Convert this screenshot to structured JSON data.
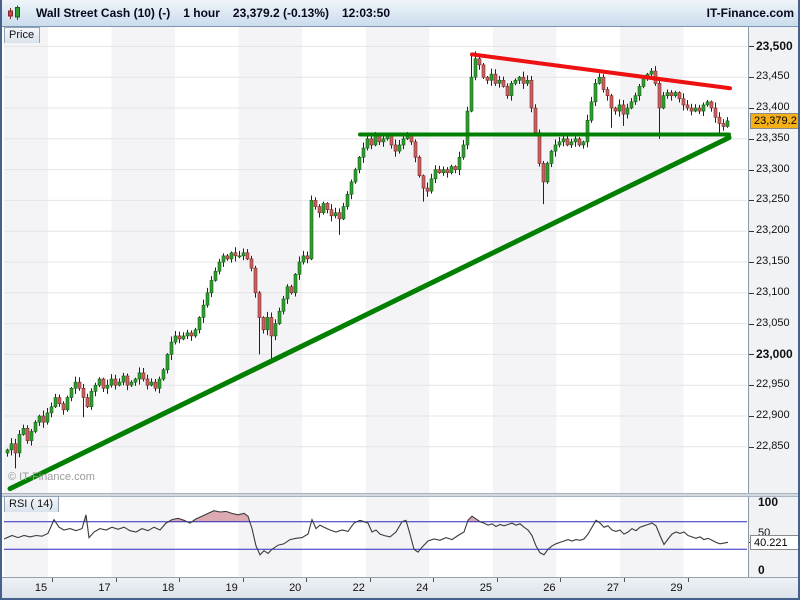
{
  "titlebar": {
    "instrument": "Wall Street Cash (10) (-)",
    "timeframe": "1 hour",
    "price_and_change": "23,379.2 (-0.13%)",
    "time": "12:03:50",
    "brand": "IT-Finance.com"
  },
  "tabs": {
    "price": "Price",
    "rsi": "RSI ( 14)"
  },
  "watermark": "© IT-Finance.com",
  "price_axis": {
    "badge": "23,379.2",
    "min": 22850,
    "max": 23500,
    "step": 50,
    "bold_values": [
      23500,
      23000
    ]
  },
  "rsi_axis": {
    "top_label": "100",
    "mid_label": "50",
    "bottom_label": "0",
    "badge": "40.221"
  },
  "time_axis": {
    "labels": [
      "15",
      "17",
      "18",
      "19",
      "20",
      "22",
      "24",
      "25",
      "26",
      "27",
      "29"
    ]
  },
  "colors": {
    "up": "#2f9e2f",
    "up_border": "#1d5c1d",
    "down": "#c96161",
    "down_border": "#7a2a2a",
    "wick": "#222222",
    "trend_green": "#007f00",
    "trend_red": "#ee1111",
    "rsi_line": "#3b3b3b",
    "rsi_level": "#2b2bc0",
    "rsi_fill": "#dcaab0",
    "grid": "#e4e4e7",
    "band": "#f4f4f7",
    "badge_bg": "#f5af17"
  },
  "chart_data": {
    "type": "candlestick",
    "title": "Wall Street Cash (10) 1 hour",
    "ylim": [
      22850,
      23500
    ],
    "x_start": 4,
    "x_step": 4,
    "first_open": 22840,
    "closes": [
      22845,
      22855,
      22840,
      22870,
      22880,
      22860,
      22875,
      22890,
      22900,
      22890,
      22905,
      22915,
      22930,
      22920,
      22910,
      22930,
      22945,
      22955,
      22945,
      22930,
      22915,
      22940,
      22950,
      22960,
      22945,
      22950,
      22960,
      22950,
      22955,
      22965,
      22950,
      22955,
      22960,
      22970,
      22960,
      22950,
      22955,
      22945,
      22960,
      22975,
      23000,
      23020,
      23030,
      23025,
      23030,
      23035,
      23030,
      23040,
      23060,
      23080,
      23100,
      23120,
      23135,
      23150,
      23160,
      23155,
      23165,
      23160,
      23160,
      23165,
      23155,
      23140,
      23100,
      23060,
      23040,
      23060,
      23030,
      23050,
      23070,
      23090,
      23110,
      23100,
      23130,
      23150,
      23160,
      23155,
      23250,
      23240,
      23230,
      23245,
      23235,
      23225,
      23230,
      23220,
      23240,
      23260,
      23280,
      23300,
      23320,
      23335,
      23350,
      23340,
      23355,
      23345,
      23350,
      23355,
      23340,
      23330,
      23340,
      23350,
      23355,
      23345,
      23320,
      23290,
      23270,
      23265,
      23285,
      23300,
      23295,
      23300,
      23295,
      23305,
      23300,
      23320,
      23340,
      23395,
      23450,
      23480,
      23470,
      23450,
      23445,
      23455,
      23440,
      23445,
      23435,
      23420,
      23440,
      23445,
      23450,
      23440,
      23445,
      23400,
      23360,
      23310,
      23280,
      23310,
      23330,
      23340,
      23345,
      23350,
      23340,
      23345,
      23350,
      23340,
      23345,
      23380,
      23410,
      23440,
      23450,
      23430,
      23420,
      23400,
      23395,
      23405,
      23390,
      23400,
      23410,
      23420,
      23435,
      23450,
      23455,
      23460,
      23440,
      23400,
      23420,
      23425,
      23420,
      23425,
      23415,
      23405,
      23400,
      23395,
      23400,
      23395,
      23405,
      23410,
      23400,
      23385,
      23375,
      23370,
      23379.2
    ],
    "wick_low_overrides": {
      "2": 22815,
      "19": 22898,
      "63": 23000,
      "66": 22992,
      "83": 23194,
      "104": 23248,
      "134": 23244,
      "151": 23368,
      "154": 23371,
      "163": 23350,
      "178": 23360
    },
    "wick_high_overrides": {
      "76": 23258,
      "116": 23486,
      "117": 23492,
      "161": 23465
    },
    "trendlines": [
      {
        "name": "support-trendline",
        "color_key": "trend_green",
        "width": 5,
        "x1": 8,
        "p1": 22782,
        "x2": 727,
        "p2": 23352
      },
      {
        "name": "horizontal-support",
        "color_key": "trend_green",
        "width": 4,
        "x1": 358,
        "p1": 23357,
        "x2": 727,
        "p2": 23357
      },
      {
        "name": "resistance-trendline",
        "color_key": "trend_red",
        "width": 4,
        "x1": 470,
        "p1": 23487,
        "x2": 728,
        "p2": 23432
      }
    ],
    "rsi": {
      "type": "line",
      "period_label": "RSI ( 14)",
      "levels": [
        70,
        30
      ],
      "current": 40.221,
      "points": [
        [
          0,
          45
        ],
        [
          8,
          50
        ],
        [
          14,
          47
        ],
        [
          20,
          50
        ],
        [
          26,
          48
        ],
        [
          32,
          50
        ],
        [
          38,
          49
        ],
        [
          44,
          53
        ],
        [
          50,
          73
        ],
        [
          55,
          62
        ],
        [
          60,
          58
        ],
        [
          66,
          60
        ],
        [
          72,
          57
        ],
        [
          78,
          60
        ],
        [
          82,
          80
        ],
        [
          85,
          47
        ],
        [
          90,
          55
        ],
        [
          96,
          60
        ],
        [
          102,
          58
        ],
        [
          108,
          62
        ],
        [
          114,
          59
        ],
        [
          120,
          62
        ],
        [
          126,
          57
        ],
        [
          132,
          55
        ],
        [
          138,
          60
        ],
        [
          144,
          57
        ],
        [
          150,
          62
        ],
        [
          156,
          58
        ],
        [
          162,
          68
        ],
        [
          168,
          73
        ],
        [
          174,
          75
        ],
        [
          180,
          72
        ],
        [
          186,
          68
        ],
        [
          192,
          74
        ],
        [
          198,
          78
        ],
        [
          204,
          82
        ],
        [
          210,
          86
        ],
        [
          216,
          84
        ],
        [
          222,
          85
        ],
        [
          228,
          82
        ],
        [
          234,
          80
        ],
        [
          240,
          82
        ],
        [
          244,
          78
        ],
        [
          248,
          60
        ],
        [
          252,
          35
        ],
        [
          256,
          22
        ],
        [
          260,
          28
        ],
        [
          264,
          24
        ],
        [
          268,
          30
        ],
        [
          274,
          36
        ],
        [
          280,
          38
        ],
        [
          286,
          44
        ],
        [
          292,
          46
        ],
        [
          298,
          47
        ],
        [
          304,
          52
        ],
        [
          308,
          73
        ],
        [
          312,
          60
        ],
        [
          316,
          65
        ],
        [
          320,
          62
        ],
        [
          326,
          58
        ],
        [
          332,
          55
        ],
        [
          338,
          58
        ],
        [
          344,
          56
        ],
        [
          350,
          68
        ],
        [
          356,
          72
        ],
        [
          360,
          70
        ],
        [
          364,
          68
        ],
        [
          368,
          55
        ],
        [
          372,
          58
        ],
        [
          376,
          52
        ],
        [
          380,
          50
        ],
        [
          386,
          48
        ],
        [
          392,
          55
        ],
        [
          398,
          70
        ],
        [
          402,
          72
        ],
        [
          406,
          52
        ],
        [
          410,
          30
        ],
        [
          414,
          26
        ],
        [
          418,
          33
        ],
        [
          424,
          42
        ],
        [
          430,
          45
        ],
        [
          436,
          43
        ],
        [
          442,
          47
        ],
        [
          448,
          44
        ],
        [
          454,
          50
        ],
        [
          460,
          55
        ],
        [
          464,
          72
        ],
        [
          468,
          78
        ],
        [
          472,
          74
        ],
        [
          476,
          70
        ],
        [
          480,
          68
        ],
        [
          484,
          65
        ],
        [
          488,
          67
        ],
        [
          492,
          63
        ],
        [
          496,
          66
        ],
        [
          500,
          64
        ],
        [
          504,
          66
        ],
        [
          508,
          68
        ],
        [
          512,
          65
        ],
        [
          516,
          67
        ],
        [
          520,
          62
        ],
        [
          524,
          58
        ],
        [
          528,
          50
        ],
        [
          532,
          35
        ],
        [
          536,
          25
        ],
        [
          540,
          22
        ],
        [
          544,
          30
        ],
        [
          548,
          35
        ],
        [
          552,
          38
        ],
        [
          556,
          40
        ],
        [
          560,
          42
        ],
        [
          564,
          44
        ],
        [
          568,
          42
        ],
        [
          572,
          44
        ],
        [
          576,
          43
        ],
        [
          580,
          45
        ],
        [
          584,
          52
        ],
        [
          588,
          62
        ],
        [
          592,
          72
        ],
        [
          596,
          68
        ],
        [
          600,
          62
        ],
        [
          604,
          64
        ],
        [
          608,
          58
        ],
        [
          612,
          56
        ],
        [
          616,
          58
        ],
        [
          620,
          52
        ],
        [
          624,
          55
        ],
        [
          628,
          60
        ],
        [
          632,
          57
        ],
        [
          636,
          62
        ],
        [
          640,
          64
        ],
        [
          644,
          66
        ],
        [
          648,
          68
        ],
        [
          652,
          64
        ],
        [
          656,
          50
        ],
        [
          660,
          37
        ],
        [
          664,
          45
        ],
        [
          668,
          52
        ],
        [
          672,
          55
        ],
        [
          676,
          53
        ],
        [
          680,
          55
        ],
        [
          684,
          50
        ],
        [
          688,
          48
        ],
        [
          692,
          46
        ],
        [
          696,
          48
        ],
        [
          700,
          44
        ],
        [
          704,
          46
        ],
        [
          708,
          43
        ],
        [
          712,
          40
        ],
        [
          716,
          38
        ],
        [
          720,
          39
        ],
        [
          724,
          40.2
        ]
      ]
    }
  }
}
